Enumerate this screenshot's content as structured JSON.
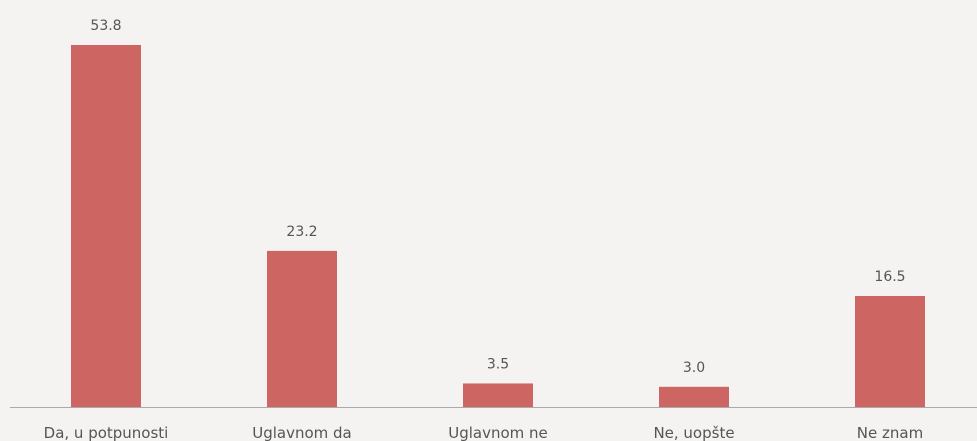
{
  "chart_data": {
    "type": "bar",
    "categories": [
      "Da, u potpunosti",
      "Uglavnom da",
      "Uglavnom ne",
      "Ne, uopšte",
      "Ne znam"
    ],
    "values": [
      53.8,
      23.2,
      3.5,
      3.0,
      16.5
    ],
    "value_labels": [
      "53.8",
      "23.2",
      "3.5",
      "3.0",
      "16.5"
    ],
    "color": "#cd6662"
  }
}
